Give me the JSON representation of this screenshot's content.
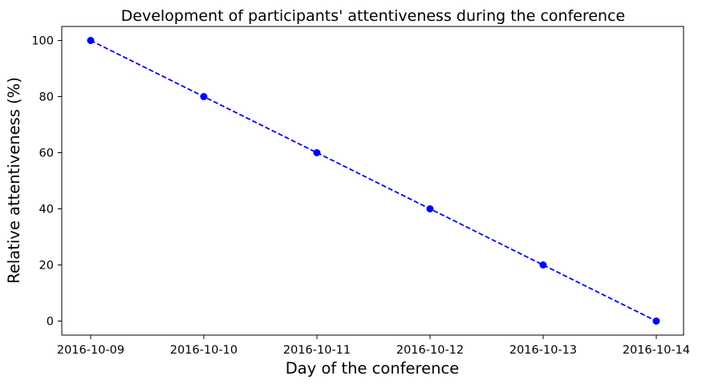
{
  "chart_data": {
    "type": "line",
    "title": "Development of participants' attentiveness during the conference",
    "xlabel": "Day of the conference",
    "ylabel": "Relative attentiveness (%)",
    "x": [
      "2016-10-09",
      "2016-10-10",
      "2016-10-11",
      "2016-10-12",
      "2016-10-13",
      "2016-10-14"
    ],
    "series": [
      {
        "values": [
          100,
          80,
          60,
          40,
          20,
          0
        ],
        "color": "#0000ff",
        "line_style": "dashed",
        "marker": "circle"
      }
    ],
    "y_ticks": [
      0,
      20,
      40,
      60,
      80,
      100
    ],
    "ylim": [
      -5,
      105
    ],
    "grid": false,
    "legend": false
  }
}
